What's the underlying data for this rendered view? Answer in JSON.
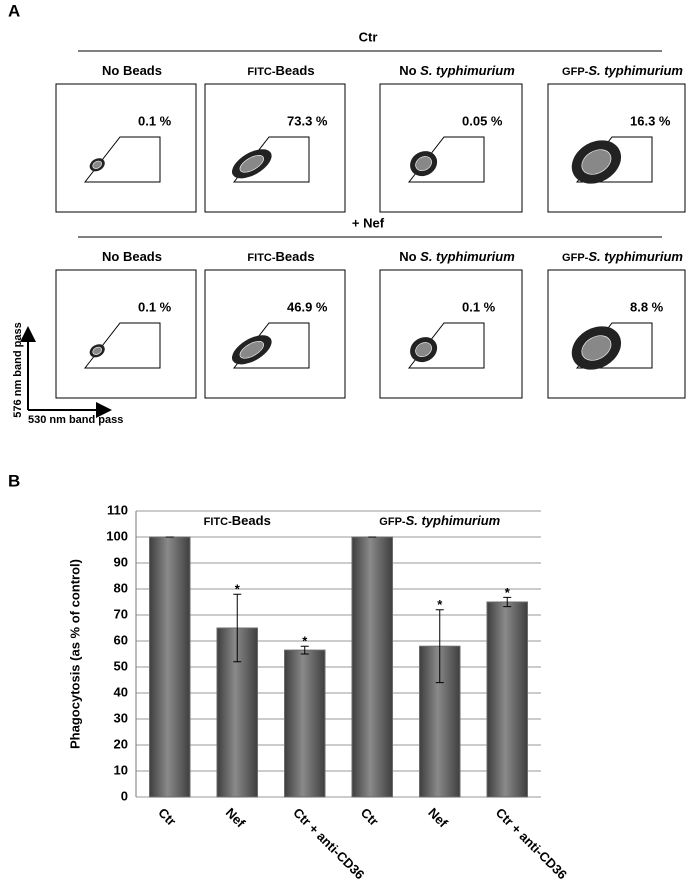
{
  "panel_a": {
    "label": "A",
    "groups": [
      {
        "title": "Ctr",
        "plots": [
          {
            "header": [
              {
                "text": "No Beads",
                "style": "bold"
              }
            ],
            "percent": "0.1 %"
          },
          {
            "header": [
              {
                "text": "FITC-",
                "style": "small"
              },
              {
                "text": "Beads",
                "style": "bold"
              }
            ],
            "percent": "73.3 %"
          },
          {
            "header": [
              {
                "text": "No ",
                "style": "bold"
              },
              {
                "text": "S. typhimurium",
                "style": "italic"
              }
            ],
            "percent": "0.05 %"
          },
          {
            "header": [
              {
                "text": "GFP-",
                "style": "small"
              },
              {
                "text": "S. typhimurium",
                "style": "italic"
              }
            ],
            "percent": "16.3 %"
          }
        ]
      },
      {
        "title": "+ Nef",
        "plots": [
          {
            "header": [
              {
                "text": "No Beads",
                "style": "bold"
              }
            ],
            "percent": "0.1 %"
          },
          {
            "header": [
              {
                "text": "FITC-",
                "style": "small"
              },
              {
                "text": "Beads",
                "style": "bold"
              }
            ],
            "percent": "46.9 %"
          },
          {
            "header": [
              {
                "text": "No ",
                "style": "bold"
              },
              {
                "text": "S. typhimurium",
                "style": "italic"
              }
            ],
            "percent": "0.1 %"
          },
          {
            "header": [
              {
                "text": "GFP-",
                "style": "small"
              },
              {
                "text": "S. typhimurium",
                "style": "italic"
              }
            ],
            "percent": "8.8 %"
          }
        ]
      }
    ],
    "y_axis_label": "576 nm  band pass",
    "x_axis_label": "530 nm band pass"
  },
  "panel_b": {
    "label": "B"
  },
  "chart_data": {
    "type": "bar",
    "ylabel": "Phagocytosis (as % of control)",
    "categories": [
      "Ctr",
      "Nef",
      "Ctr + anti-CD36",
      "Ctr",
      "Nef",
      "Ctr + anti-CD36"
    ],
    "values": [
      100,
      65,
      56.5,
      100,
      58,
      75
    ],
    "errors": [
      0,
      13,
      1.5,
      0,
      14,
      1.8
    ],
    "significance": [
      null,
      "*",
      "*",
      null,
      "*",
      "*"
    ],
    "group_labels": [
      [
        {
          "text": "FITC-",
          "style": "small"
        },
        {
          "text": "Beads",
          "style": "bold"
        }
      ],
      [
        {
          "text": "GFP-",
          "style": "small"
        },
        {
          "text": "S. typhimurium",
          "style": "italic"
        }
      ]
    ],
    "ylim": [
      0,
      110
    ],
    "yticks": [
      0,
      10,
      20,
      30,
      40,
      50,
      60,
      70,
      80,
      90,
      100,
      110
    ],
    "grid": true,
    "color": "#6b6b6b"
  }
}
